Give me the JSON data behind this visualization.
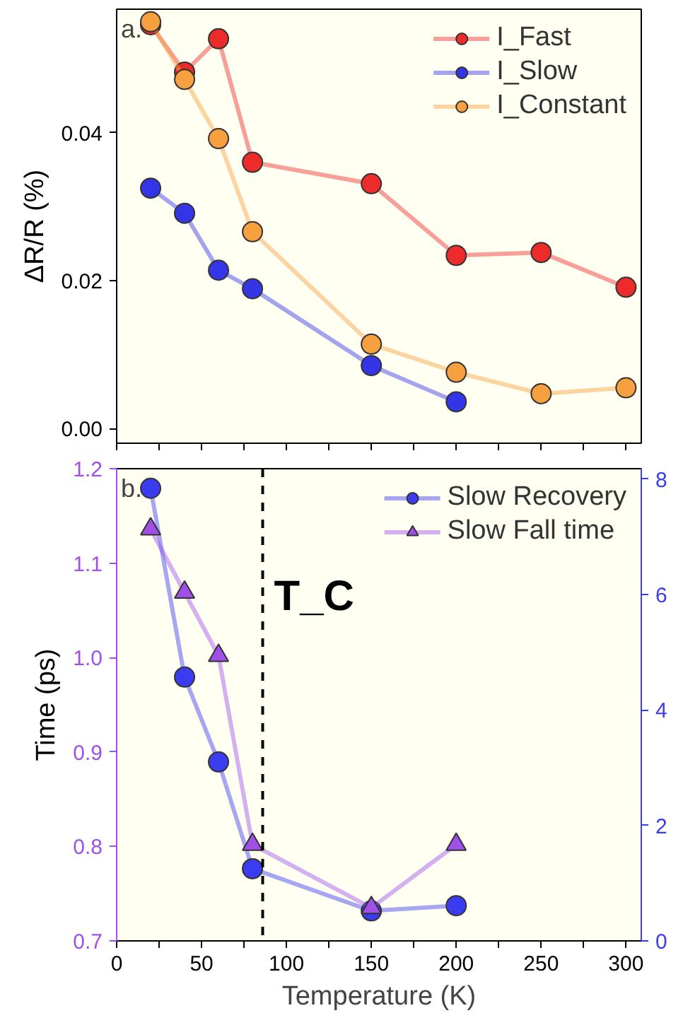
{
  "chart_data": [
    {
      "type": "line",
      "ylabel": "ΔR/R (%)",
      "annotations": [
        "a."
      ],
      "x": [
        20,
        40,
        60,
        80,
        150,
        200,
        250,
        300
      ],
      "xlim": [
        0,
        309
      ],
      "ylim": [
        -0.002,
        0.0567
      ],
      "xticks": [
        0,
        {
          "value": 25,
          "label": null
        },
        50,
        {
          "value": 75,
          "label": null
        },
        100,
        {
          "value": 125,
          "label": null
        },
        150,
        {
          "value": 175,
          "label": null
        },
        200,
        {
          "value": 225,
          "label": null
        },
        250,
        {
          "value": 275,
          "label": null
        },
        300
      ],
      "yticks": [
        {
          "value": 0,
          "label": "0.00"
        },
        {
          "value": 0.02,
          "label": "0.02"
        },
        {
          "value": 0.04,
          "label": "0.04"
        }
      ],
      "tick_labels": "y",
      "legend": "top right",
      "marker": "circle",
      "grid": false,
      "series": [
        {
          "name": "I_Fast",
          "color": "#ee2b2b",
          "values": [
            0.0546,
            0.0482,
            0.0527,
            0.036,
            0.0331,
            0.0234,
            0.0238,
            0.0191
          ]
        },
        {
          "name": "I_Slow",
          "color": "#3535e8",
          "x": [
            20,
            40,
            60,
            80,
            150,
            200
          ],
          "values": [
            0.0325,
            0.0291,
            0.0214,
            0.0189,
            0.0085,
            0.0036
          ]
        },
        {
          "name": "I_Constant",
          "color": "#f7a040",
          "values": [
            0.055,
            0.0472,
            0.0392,
            0.0266,
            0.0114,
            0.0076,
            0.0047,
            0.0055
          ]
        }
      ]
    },
    {
      "type": "line",
      "xlabel": "Temperature (K)",
      "ylabel": "Time (ps)",
      "annotations": [
        "b."
      ],
      "x": [
        20,
        40,
        60,
        80,
        150,
        200
      ],
      "xlim": [
        0,
        309
      ],
      "ylim": [
        0.7,
        1.2
      ],
      "y2lim": [
        0,
        8.18
      ],
      "xticks": [
        0,
        {
          "value": 25,
          "label": null
        },
        50,
        {
          "value": 75,
          "label": null
        },
        100,
        {
          "value": 125,
          "label": null
        },
        150,
        {
          "value": 175,
          "label": null
        },
        200,
        {
          "value": 225,
          "label": null
        },
        250,
        {
          "value": 275,
          "label": null
        },
        300
      ],
      "yticks": [
        0.7,
        0.8,
        0.9,
        {
          "value": 1.0,
          "label": "1.0"
        },
        1.1,
        1.2
      ],
      "y2ticks": [
        0,
        2,
        4,
        6,
        8
      ],
      "legend": "top right",
      "grid": false,
      "ref_lines": [
        {
          "axis": "x",
          "value": 86,
          "label": "T_C",
          "color": "#000000",
          "line_style": "dashed"
        }
      ],
      "series": [
        {
          "name": "Slow Recovery",
          "color": "#3b3bef",
          "axis": "y2",
          "marker": "circle",
          "values": [
            7.84,
            4.57,
            3.1,
            1.25,
            0.52,
            0.61
          ]
        },
        {
          "name": "Slow Fall time",
          "color": "#a050e8",
          "marker": "triangle",
          "values": [
            1.136,
            1.069,
            1.002,
            0.802,
            0.735,
            0.802
          ]
        }
      ]
    }
  ]
}
